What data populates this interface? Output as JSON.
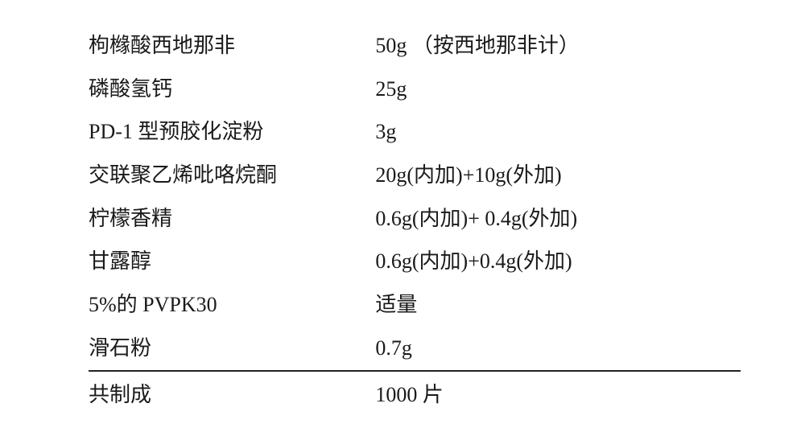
{
  "rows": [
    {
      "name": "枸橼酸西地那非",
      "amount": "50g （按西地那非计）"
    },
    {
      "name": "磷酸氢钙",
      "amount": "25g"
    },
    {
      "name": "PD-1 型预胶化淀粉",
      "amount": "3g"
    },
    {
      "name": "交联聚乙烯吡咯烷酮",
      "amount": "20g(内加)+10g(外加)"
    },
    {
      "name": "柠檬香精",
      "amount": "0.6g(内加)+ 0.4g(外加)"
    },
    {
      "name": "甘露醇",
      "amount": "0.6g(内加)+0.4g(外加)"
    },
    {
      "name": "5%的 PVPK30",
      "amount": "适量"
    },
    {
      "name": "滑石粉",
      "amount": "0.7g"
    }
  ],
  "total": {
    "name": "共制成",
    "amount": "1000 片"
  }
}
